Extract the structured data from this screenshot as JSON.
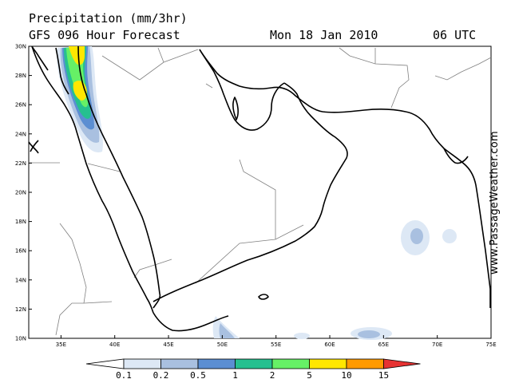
{
  "header": {
    "title": "Precipitation (mm/3hr)",
    "forecast": "GFS 096 Hour Forecast",
    "date": "Mon 18 Jan 2010",
    "time": "06 UTC"
  },
  "watermark": "www.PassageWeather.com",
  "map": {
    "lat_labels": [
      "30N",
      "28N",
      "26N",
      "24N",
      "22N",
      "20N",
      "18N",
      "16N",
      "14N",
      "12N",
      "10N"
    ],
    "lon_labels": [
      "35E",
      "40E",
      "45E",
      "50E",
      "55E",
      "60E",
      "65E",
      "70E",
      "75E"
    ],
    "lat_range": [
      10,
      30
    ],
    "lon_range": [
      32,
      75
    ]
  },
  "legend": {
    "labels": [
      "0.1",
      "0.2",
      "0.5",
      "1",
      "2",
      "5",
      "10",
      "15"
    ],
    "colors": [
      "#ffffff",
      "#dde8f5",
      "#a9c0e0",
      "#5b8ed2",
      "#26c08f",
      "#66f066",
      "#ffe700",
      "#ff9a00",
      "#e63232"
    ]
  },
  "colors": {
    "coast": "#000000",
    "border": "#808080"
  }
}
